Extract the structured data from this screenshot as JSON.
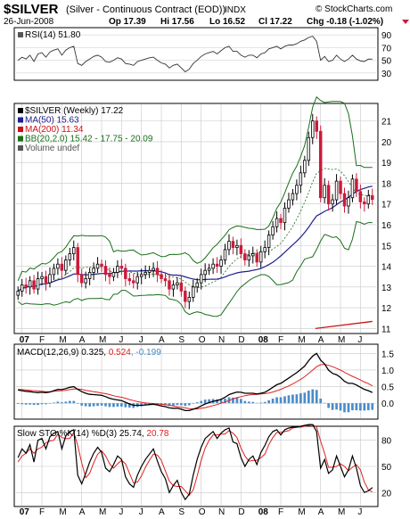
{
  "header": {
    "symbol": "$SILVER",
    "description": "(Silver - Continuous Contract (EOD))",
    "exchange": "INDX",
    "watermark": "© StockCharts.com",
    "date": "26-Jun-2008",
    "open": "Op 17.39",
    "high": "Hi 17.56",
    "low": "Lo 16.52",
    "close": "Cl 17.22",
    "change": "Chg -0.18 (-1.02%)"
  },
  "rsi_panel": {
    "label": "RSI(14) 51.80",
    "ticks": [
      "90",
      "70",
      "50",
      "30"
    ],
    "tick_values": [
      90,
      70,
      50,
      30
    ],
    "range": [
      20,
      100
    ]
  },
  "price_panel": {
    "legend": [
      {
        "text": "$SILVER (Weekly) 17.22",
        "color": "#000000"
      },
      {
        "text": "MA(50) 15.63",
        "color": "#1f1f8f"
      },
      {
        "text": "MA(200) 11.34",
        "color": "#cc1010"
      },
      {
        "text": "BB(20,2.0) 15.42 - 17.75 - 20.09",
        "color": "#1a6e1a"
      },
      {
        "text": "Volume undef",
        "color": "#555555"
      }
    ],
    "ticks": [
      "21",
      "20",
      "19",
      "18",
      "17",
      "16",
      "15",
      "14",
      "13",
      "12",
      "11"
    ],
    "tick_values": [
      21,
      20,
      19,
      18,
      17,
      16,
      15,
      14,
      13,
      12,
      11
    ],
    "range": [
      10.8,
      21.8
    ]
  },
  "months": [
    "07",
    "F",
    "M",
    "A",
    "M",
    "J",
    "J",
    "A",
    "S",
    "O",
    "N",
    "D",
    "08",
    "F",
    "M",
    "A",
    "M",
    "J"
  ],
  "macd_panel": {
    "label": "MACD(12,26,9) 0.325, ",
    "signal_text": "0.524",
    "hist_text": ", -0.199",
    "ticks": [
      "1.5",
      "1.0",
      "0.5",
      "0.0"
    ],
    "tick_values": [
      1.5,
      1.0,
      0.5,
      0.0
    ],
    "range": [
      -0.45,
      1.75
    ]
  },
  "sto_panel": {
    "label": "Slow STO %K(14) %D(3) 25.74, ",
    "d_text": "20.78",
    "ticks": [
      "80",
      "50",
      "20"
    ],
    "tick_values": [
      80,
      50,
      20
    ],
    "range": [
      5,
      95
    ]
  },
  "colors": {
    "up": "#000000",
    "down": "#cc1a3a",
    "ma50": "#1f1f8f",
    "ma200": "#cc1010",
    "bb": "#1a6e1a",
    "hist": "#4a8cc8",
    "signal": "#e02020",
    "grid": "#c8c8c8"
  },
  "chart_data": {
    "type": "candlestick",
    "title": "$SILVER (Silver - Continuous Contract (EOD)) INDX",
    "x_start": "2007-01",
    "x_end": "2008-06",
    "price_close": [
      12.8,
      13.1,
      13.0,
      13.3,
      12.9,
      13.4,
      13.5,
      13.2,
      13.6,
      13.9,
      14.1,
      13.8,
      14.3,
      14.6,
      14.9,
      13.6,
      13.2,
      13.4,
      13.7,
      13.9,
      14.1,
      14.0,
      13.6,
      13.5,
      13.7,
      14.0,
      13.9,
      13.4,
      13.3,
      13.2,
      13.5,
      13.6,
      13.7,
      13.8,
      13.9,
      13.6,
      13.4,
      13.3,
      12.9,
      13.1,
      13.2,
      12.8,
      12.3,
      12.5,
      13.0,
      13.2,
      13.6,
      13.8,
      13.9,
      14.1,
      14.0,
      14.3,
      14.8,
      15.2,
      14.9,
      15.0,
      14.6,
      14.3,
      14.5,
      14.6,
      14.2,
      14.7,
      14.9,
      15.5,
      15.9,
      16.3,
      16.1,
      16.8,
      17.2,
      17.5,
      17.9,
      18.5,
      19.1,
      20.2,
      21.0,
      20.5,
      17.3,
      17.9,
      17.0,
      17.2,
      18.1,
      17.5,
      16.9,
      17.3,
      18.2,
      17.6,
      17.1,
      17.0,
      17.4,
      17.22
    ],
    "rsi": [
      50,
      55,
      52,
      58,
      48,
      60,
      62,
      55,
      63,
      66,
      68,
      58,
      66,
      70,
      72,
      45,
      42,
      48,
      52,
      56,
      58,
      55,
      48,
      47,
      50,
      54,
      52,
      45,
      44,
      42,
      48,
      50,
      52,
      54,
      55,
      50,
      46,
      44,
      38,
      42,
      44,
      38,
      32,
      36,
      45,
      50,
      56,
      60,
      62,
      64,
      60,
      65,
      70,
      72,
      64,
      64,
      58,
      55,
      58,
      58,
      54,
      60,
      62,
      68,
      70,
      72,
      68,
      72,
      74,
      74,
      76,
      80,
      82,
      86,
      88,
      80,
      50,
      56,
      48,
      50,
      58,
      52,
      48,
      52,
      58,
      52,
      49,
      48,
      52,
      51.8
    ],
    "macd": [
      0.4,
      0.38,
      0.36,
      0.35,
      0.33,
      0.32,
      0.33,
      0.32,
      0.34,
      0.38,
      0.42,
      0.41,
      0.44,
      0.48,
      0.5,
      0.42,
      0.35,
      0.3,
      0.27,
      0.26,
      0.25,
      0.24,
      0.2,
      0.15,
      0.12,
      0.1,
      0.08,
      0.03,
      -0.02,
      -0.06,
      -0.06,
      -0.06,
      -0.05,
      -0.04,
      -0.03,
      -0.05,
      -0.08,
      -0.1,
      -0.14,
      -0.15,
      -0.15,
      -0.18,
      -0.22,
      -0.22,
      -0.18,
      -0.14,
      -0.08,
      -0.02,
      0.02,
      0.06,
      0.08,
      0.12,
      0.18,
      0.26,
      0.3,
      0.34,
      0.33,
      0.3,
      0.3,
      0.3,
      0.28,
      0.3,
      0.33,
      0.4,
      0.48,
      0.56,
      0.6,
      0.68,
      0.76,
      0.84,
      0.92,
      1.02,
      1.12,
      1.28,
      1.42,
      1.5,
      1.3,
      1.18,
      1.0,
      0.9,
      0.86,
      0.78,
      0.66,
      0.6,
      0.6,
      0.55,
      0.48,
      0.42,
      0.38,
      0.325
    ],
    "macd_signal": [
      0.42,
      0.41,
      0.4,
      0.39,
      0.38,
      0.37,
      0.36,
      0.35,
      0.35,
      0.36,
      0.37,
      0.38,
      0.39,
      0.41,
      0.43,
      0.43,
      0.42,
      0.39,
      0.37,
      0.35,
      0.33,
      0.31,
      0.29,
      0.26,
      0.23,
      0.2,
      0.18,
      0.15,
      0.11,
      0.08,
      0.05,
      0.03,
      0.01,
      0.0,
      -0.01,
      -0.02,
      -0.03,
      -0.04,
      -0.06,
      -0.08,
      -0.1,
      -0.12,
      -0.14,
      -0.16,
      -0.17,
      -0.17,
      -0.15,
      -0.13,
      -0.1,
      -0.07,
      -0.04,
      0.0,
      0.04,
      0.08,
      0.13,
      0.17,
      0.2,
      0.23,
      0.25,
      0.26,
      0.27,
      0.28,
      0.29,
      0.31,
      0.34,
      0.38,
      0.42,
      0.47,
      0.52,
      0.58,
      0.65,
      0.72,
      0.8,
      0.9,
      1.0,
      1.1,
      1.16,
      1.17,
      1.14,
      1.1,
      1.05,
      1.0,
      0.93,
      0.87,
      0.81,
      0.76,
      0.7,
      0.64,
      0.59,
      0.524
    ],
    "sto_k": [
      60,
      70,
      65,
      75,
      55,
      80,
      82,
      70,
      84,
      88,
      90,
      70,
      85,
      90,
      92,
      40,
      30,
      42,
      55,
      65,
      72,
      66,
      48,
      44,
      52,
      62,
      58,
      38,
      30,
      26,
      40,
      50,
      58,
      64,
      70,
      56,
      44,
      36,
      20,
      28,
      34,
      20,
      12,
      18,
      40,
      58,
      72,
      82,
      86,
      90,
      82,
      88,
      92,
      94,
      78,
      76,
      60,
      50,
      58,
      62,
      52,
      66,
      74,
      84,
      90,
      92,
      86,
      92,
      94,
      95,
      95,
      96,
      97,
      98,
      98,
      90,
      48,
      58,
      42,
      46,
      62,
      50,
      38,
      46,
      62,
      48,
      28,
      20,
      22,
      25.74
    ],
    "sto_d": [
      55,
      62,
      65,
      70,
      65,
      70,
      72,
      77,
      79,
      80,
      87,
      83,
      82,
      82,
      89,
      74,
      54,
      37,
      42,
      54,
      64,
      68,
      62,
      53,
      48,
      53,
      57,
      53,
      42,
      31,
      32,
      39,
      49,
      57,
      64,
      63,
      57,
      45,
      33,
      28,
      27,
      27,
      22,
      17,
      23,
      39,
      57,
      71,
      80,
      86,
      86,
      87,
      87,
      91,
      88,
      83,
      71,
      62,
      56,
      57,
      57,
      60,
      64,
      75,
      83,
      89,
      89,
      90,
      91,
      94,
      95,
      95,
      96,
      97,
      98,
      95,
      79,
      65,
      49,
      49,
      50,
      53,
      50,
      45,
      49,
      52,
      46,
      32,
      23,
      20.78
    ]
  }
}
